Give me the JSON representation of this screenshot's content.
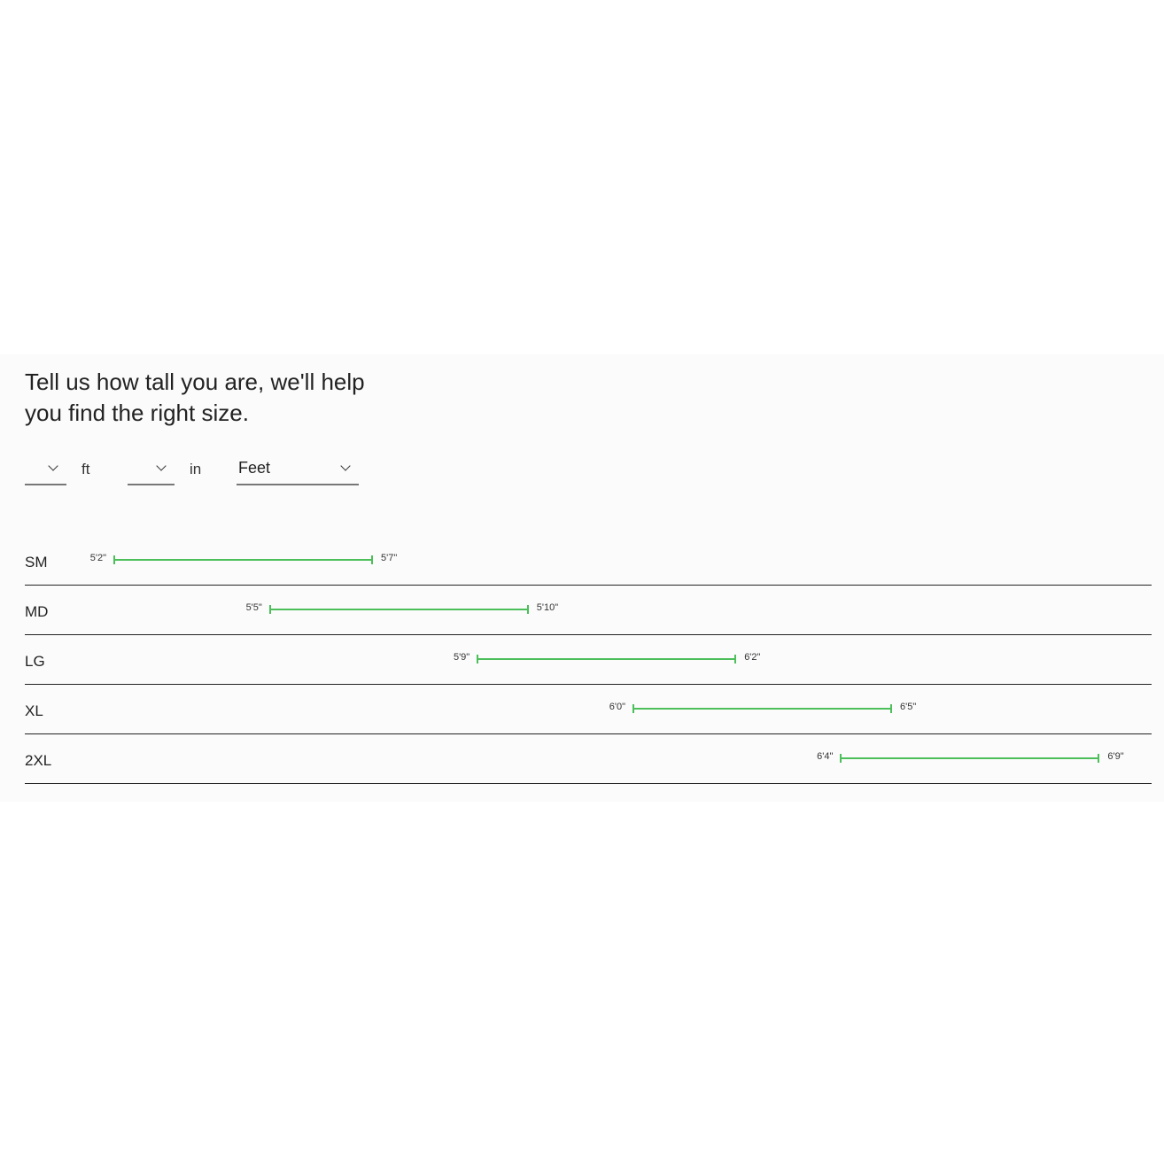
{
  "heading": "Tell us how tall you are, we'll help you find the right size.",
  "inputs": {
    "feet": {
      "value": "",
      "unit_label": "ft"
    },
    "inches": {
      "value": "",
      "unit_label": "in"
    },
    "unit_system": {
      "value": "Feet"
    }
  },
  "bar_color": "#4cbf5a",
  "sizes": [
    {
      "label": "SM",
      "min": "5'2\"",
      "max": "5'7\""
    },
    {
      "label": "MD",
      "min": "5'5\"",
      "max": "5'10\""
    },
    {
      "label": "LG",
      "min": "5'9\"",
      "max": "6'2\""
    },
    {
      "label": "XL",
      "min": "6'0\"",
      "max": "6'5\""
    },
    {
      "label": "2XL",
      "min": "6'4\"",
      "max": "6'9\""
    }
  ]
}
